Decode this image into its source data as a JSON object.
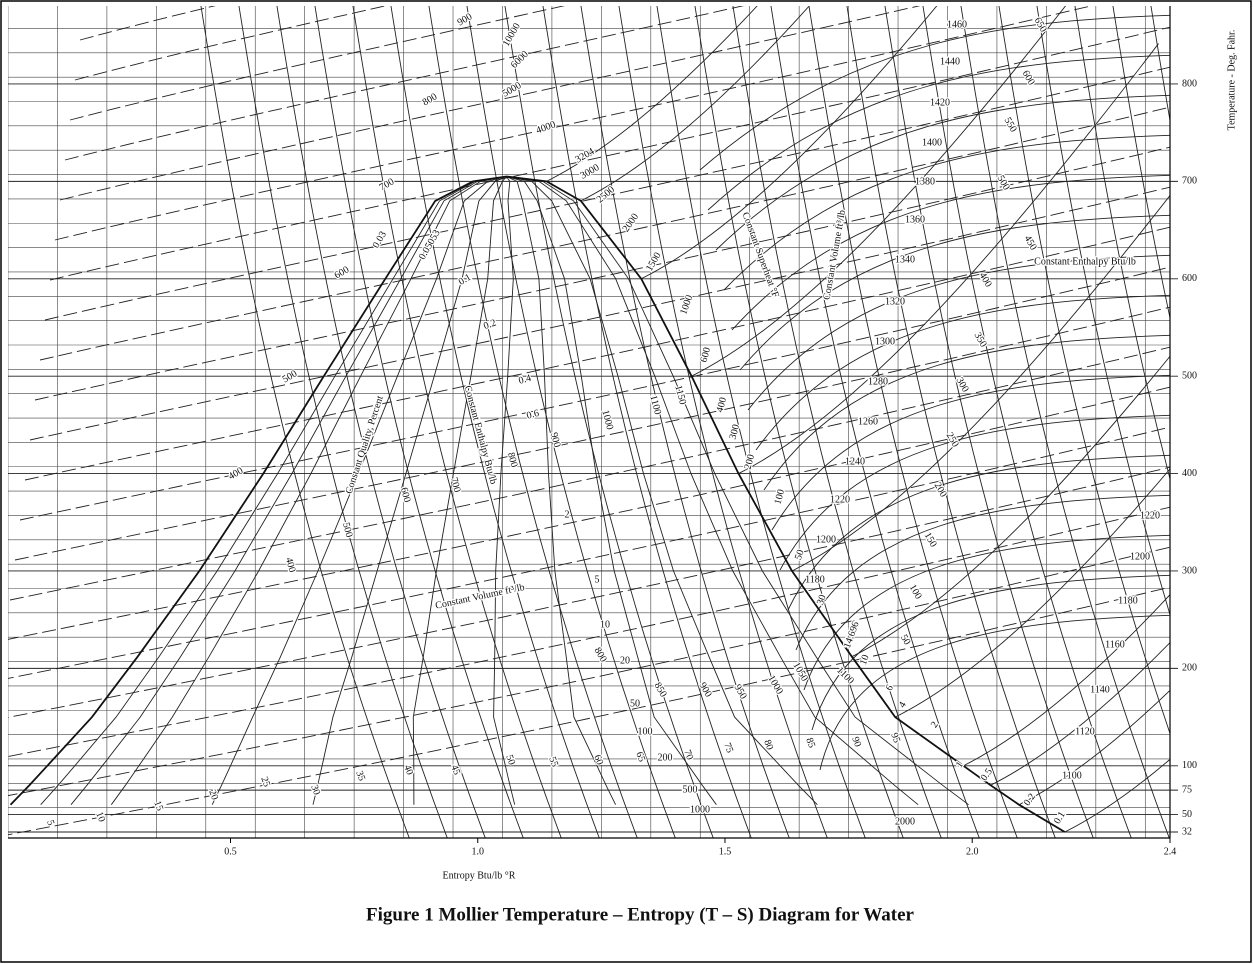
{
  "chart_data": {
    "type": "line",
    "title": "Figure 1  Mollier Temperature – Entropy (T – S) Diagram for Water",
    "xlabel": "Entropy Btu/lb °R",
    "ylabel": "Temperature - Deg. Fahr.",
    "xlim": [
      0.05,
      2.4
    ],
    "ylim": [
      32,
      878
    ],
    "xticks": [
      0.5,
      {
        "value": 1,
        "label": "1.0"
      },
      1.5,
      {
        "value": 2,
        "label": "2.0"
      },
      2.4
    ],
    "yticks": [
      32,
      50,
      75,
      100,
      200,
      300,
      400,
      500,
      600,
      700,
      800
    ],
    "grid": true,
    "series": [
      {
        "color": "#111",
        "x": [
          0.055,
          0.0932,
          0.1295,
          0.2198,
          0.3121,
          0.4369,
          0.5664,
          0.6887,
          0.8131,
          0.9139,
          0.9905,
          1.058,
          1.139,
          1.2086,
          1.3307,
          1.4325,
          1.5274,
          1.6356,
          1.7566,
          1.8443,
          1.9822,
          2.037,
          2.0946,
          2.1873
        ],
        "values": [
          60,
          80,
          100,
          150,
          212,
          300,
          400,
          500,
          600,
          680,
          700,
          705,
          700,
          680,
          600,
          500,
          400,
          300,
          212,
          150,
          100,
          80,
          60,
          32
        ]
      }
    ],
    "annotations": [
      "Constant Quality, Percent",
      "Constant Enthalpy Btu/lb",
      "Constant Volume ft³/lb",
      "Constant Superheat °F",
      "Constant Volume ft³/lb",
      "Constant Enthalpy Btu/lb",
      "900",
      "800",
      "700",
      "600",
      "500",
      "400",
      "10000",
      "6000",
      "5000",
      "4000",
      "3204",
      "3000",
      "2500",
      "2000",
      "1500",
      "1000",
      "600",
      "400",
      "300",
      "200",
      "100",
      "50",
      "30",
      "14.696",
      "10",
      "6",
      "4",
      "2",
      "1",
      "0.5",
      "0.2",
      "0.1",
      "1460",
      "1440",
      "1420",
      "1400",
      "1380",
      "1360",
      "1340",
      "1320",
      "1300",
      "1280",
      "1260",
      "1240",
      "1220",
      "1200",
      "1180",
      "1220",
      "1200",
      "1180",
      "1160",
      "1140",
      "1120",
      "1100",
      "2000",
      "1000",
      "500",
      "200",
      "100",
      "50",
      "20",
      "10",
      "5",
      "2",
      "0.03",
      "0.05053",
      "0.1",
      "0.2",
      "0.4",
      "0.6",
      "1000",
      "1100",
      "1150",
      "900",
      "800",
      "700",
      "600",
      "500",
      "400",
      "800",
      "850",
      "900",
      "950",
      "1000",
      "1050",
      "1100",
      "50",
      "55",
      "60",
      "65",
      "70",
      "75",
      "80",
      "85",
      "90",
      "95",
      "45",
      "40",
      "35",
      "30",
      "25",
      "20",
      "15",
      "10",
      "5",
      "650",
      "600",
      "550",
      "500",
      "450",
      "400",
      "350",
      "300",
      "250",
      "200",
      "150",
      "100",
      "50"
    ]
  }
}
